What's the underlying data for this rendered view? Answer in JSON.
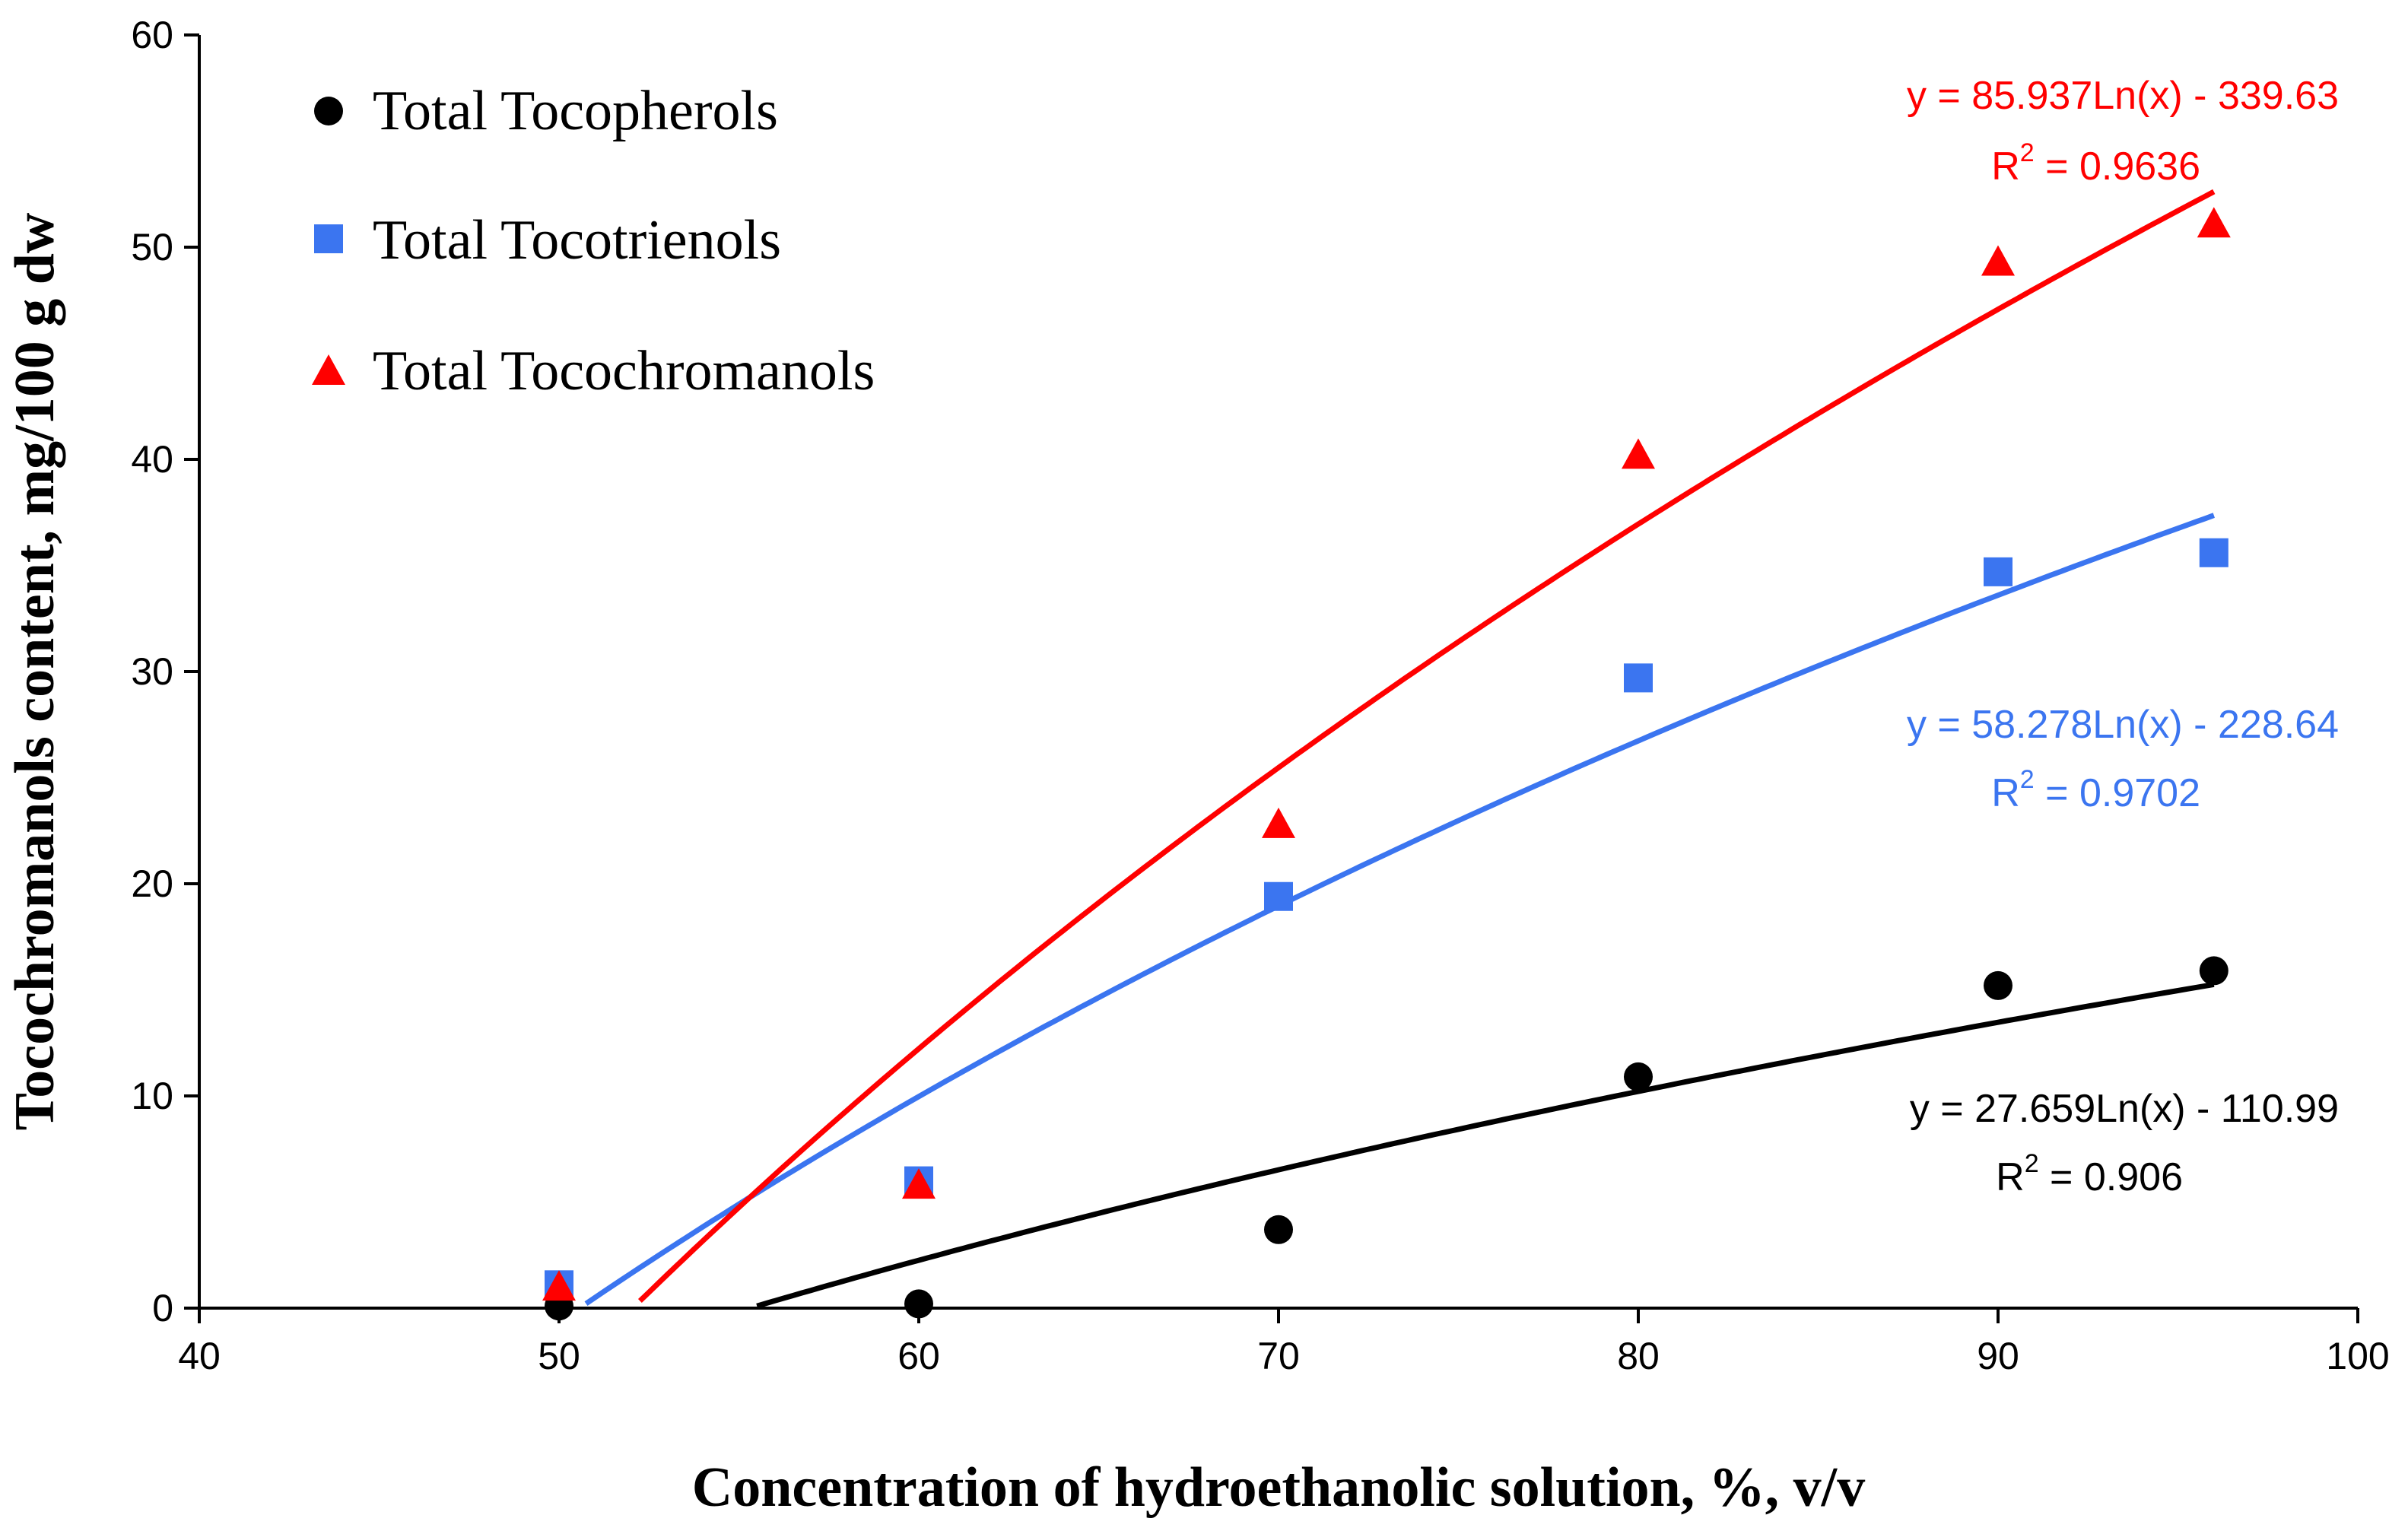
{
  "chart_data": {
    "type": "scatter",
    "title": "",
    "xlabel": "Concentration of hydroethanolic solution, %, v/v",
    "ylabel": "Tocochromanols content, mg/100 g dw",
    "xlim": [
      40,
      100
    ],
    "ylim": [
      0,
      60
    ],
    "xticks": [
      "40",
      "50",
      "60",
      "70",
      "80",
      "90",
      "100"
    ],
    "yticks": [
      "0",
      "10",
      "20",
      "30",
      "40",
      "50",
      "60"
    ],
    "grid": false,
    "legend_position": "top-left",
    "series": [
      {
        "name": "Total Tocopherols",
        "marker": "circle",
        "color": "#000000",
        "x": [
          50,
          60,
          70,
          80,
          90,
          96
        ],
        "y": [
          0.1,
          0.2,
          3.7,
          10.9,
          15.2,
          15.9
        ],
        "trend": {
          "type": "log",
          "a": 27.659,
          "b": -110.99,
          "x_range": [
            50,
            96
          ]
        },
        "equation": "y = 27.659Ln(x) - 110.99",
        "r2_label": "R",
        "r2_exp": "2",
        "r2_value": " = 0.906"
      },
      {
        "name": "Total Tocotrienols",
        "marker": "square",
        "color": "#3b75f0",
        "x": [
          50,
          60,
          70,
          80,
          90,
          96
        ],
        "y": [
          1.1,
          6.0,
          19.4,
          29.7,
          34.7,
          35.6
        ],
        "trend": {
          "type": "log",
          "a": 58.278,
          "b": -228.64,
          "x_range": [
            50,
            96
          ]
        },
        "equation": "y = 58.278Ln(x) - 228.64",
        "r2_label": "R",
        "r2_exp": "2",
        "r2_value": " = 0.9702"
      },
      {
        "name": "Total Tocochromanols",
        "marker": "triangle",
        "color": "#ff0000",
        "x": [
          50,
          60,
          70,
          80,
          90,
          96
        ],
        "y": [
          1.0,
          5.8,
          22.8,
          40.2,
          49.3,
          51.1
        ],
        "trend": {
          "type": "log",
          "a": 85.937,
          "b": -339.63,
          "x_range": [
            50,
            96
          ]
        },
        "equation": "y = 85.937Ln(x) - 339.63",
        "r2_label": "R",
        "r2_exp": "2",
        "r2_value": " = 0.9636"
      }
    ]
  }
}
